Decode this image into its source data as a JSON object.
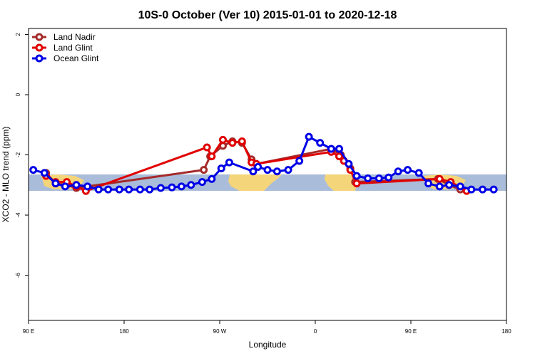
{
  "chart_data": {
    "type": "line",
    "title": "10S-0 October (Ver 10)   2015-01-01 to 2020-12-18",
    "xlabel": "Longitude",
    "ylabel": "XCO2 - MLO trend (ppm)",
    "xlim": [
      -60,
      240
    ],
    "ylim": [
      -7.5,
      2.2
    ],
    "x_ticks": [
      {
        "value": -60,
        "label": "90 E"
      },
      {
        "value": 0,
        "label": "180"
      },
      {
        "value": 60,
        "label": "90 W"
      },
      {
        "value": 120,
        "label": "0"
      },
      {
        "value": 180,
        "label": "90 E"
      },
      {
        "value": 240,
        "label": "180"
      }
    ],
    "y_ticks": [
      {
        "value": 2,
        "label": "2"
      },
      {
        "value": 0,
        "label": "0"
      },
      {
        "value": -2,
        "label": "-2"
      },
      {
        "value": -4,
        "label": "-4"
      },
      {
        "value": -6,
        "label": "-6"
      }
    ],
    "grid": false,
    "legend_position": "top-left",
    "series": [
      {
        "name": "Land Nadir",
        "color": "#a52a2a",
        "points": [
          {
            "x": -49,
            "y": -2.6
          },
          {
            "x": -43,
            "y": -2.95
          },
          {
            "x": -36,
            "y": -3.0
          },
          {
            "x": -30,
            "y": -3.1
          },
          {
            "x": 50,
            "y": -2.5
          },
          {
            "x": 54,
            "y": -2.05
          },
          {
            "x": 62,
            "y": -1.7
          },
          {
            "x": 68,
            "y": -1.55
          },
          {
            "x": 74,
            "y": -1.6
          },
          {
            "x": 80,
            "y": -2.15
          },
          {
            "x": 83,
            "y": -2.3
          },
          {
            "x": 130,
            "y": -1.8
          },
          {
            "x": 136,
            "y": -2.0
          },
          {
            "x": 142,
            "y": -2.45
          },
          {
            "x": 145,
            "y": -2.9
          },
          {
            "x": 197,
            "y": -2.8
          },
          {
            "x": 204,
            "y": -3.0
          },
          {
            "x": 211,
            "y": -3.15
          }
        ]
      },
      {
        "name": "Land Glint",
        "color": "#e00000",
        "points": [
          {
            "x": -49,
            "y": -2.7
          },
          {
            "x": -43,
            "y": -2.9
          },
          {
            "x": -36,
            "y": -2.9
          },
          {
            "x": -30,
            "y": -3.05
          },
          {
            "x": -24,
            "y": -3.2
          },
          {
            "x": 52,
            "y": -1.75
          },
          {
            "x": 55,
            "y": -2.05
          },
          {
            "x": 62,
            "y": -1.5
          },
          {
            "x": 68,
            "y": -1.6
          },
          {
            "x": 74,
            "y": -1.55
          },
          {
            "x": 80,
            "y": -2.25
          },
          {
            "x": 83,
            "y": -2.3
          },
          {
            "x": 130,
            "y": -1.9
          },
          {
            "x": 135,
            "y": -2.05
          },
          {
            "x": 138,
            "y": -2.2
          },
          {
            "x": 142,
            "y": -2.5
          },
          {
            "x": 146,
            "y": -2.95
          },
          {
            "x": 198,
            "y": -2.8
          },
          {
            "x": 205,
            "y": -2.9
          },
          {
            "x": 215,
            "y": -3.2
          }
        ]
      },
      {
        "name": "Ocean Glint",
        "color": "#0000e6",
        "points": [
          {
            "x": -57,
            "y": -2.5
          },
          {
            "x": -50,
            "y": -2.6
          },
          {
            "x": -43,
            "y": -2.95
          },
          {
            "x": -37,
            "y": -3.05
          },
          {
            "x": -30,
            "y": -3.0
          },
          {
            "x": -23,
            "y": -3.05
          },
          {
            "x": -16,
            "y": -3.15
          },
          {
            "x": -10,
            "y": -3.15
          },
          {
            "x": -3,
            "y": -3.15
          },
          {
            "x": 3,
            "y": -3.15
          },
          {
            "x": 10,
            "y": -3.15
          },
          {
            "x": 16,
            "y": -3.15
          },
          {
            "x": 23,
            "y": -3.1
          },
          {
            "x": 30,
            "y": -3.08
          },
          {
            "x": 36,
            "y": -3.05
          },
          {
            "x": 42,
            "y": -3.0
          },
          {
            "x": 49,
            "y": -2.9
          },
          {
            "x": 55,
            "y": -2.8
          },
          {
            "x": 61,
            "y": -2.45
          },
          {
            "x": 66,
            "y": -2.25
          },
          {
            "x": 81,
            "y": -2.55
          },
          {
            "x": 84,
            "y": -2.4
          },
          {
            "x": 90,
            "y": -2.5
          },
          {
            "x": 96,
            "y": -2.55
          },
          {
            "x": 103,
            "y": -2.5
          },
          {
            "x": 110,
            "y": -2.2
          },
          {
            "x": 116,
            "y": -1.4
          },
          {
            "x": 123,
            "y": -1.6
          },
          {
            "x": 130,
            "y": -1.8
          },
          {
            "x": 135,
            "y": -1.8
          },
          {
            "x": 141,
            "y": -2.3
          },
          {
            "x": 146,
            "y": -2.7
          },
          {
            "x": 153,
            "y": -2.78
          },
          {
            "x": 160,
            "y": -2.78
          },
          {
            "x": 166,
            "y": -2.75
          },
          {
            "x": 172,
            "y": -2.55
          },
          {
            "x": 178,
            "y": -2.5
          },
          {
            "x": 185,
            "y": -2.6
          },
          {
            "x": 191,
            "y": -2.95
          },
          {
            "x": 198,
            "y": -3.05
          },
          {
            "x": 204,
            "y": -3.0
          },
          {
            "x": 211,
            "y": -3.05
          },
          {
            "x": 218,
            "y": -3.15
          },
          {
            "x": 225,
            "y": -3.15
          },
          {
            "x": 232,
            "y": -3.15
          }
        ]
      }
    ]
  }
}
